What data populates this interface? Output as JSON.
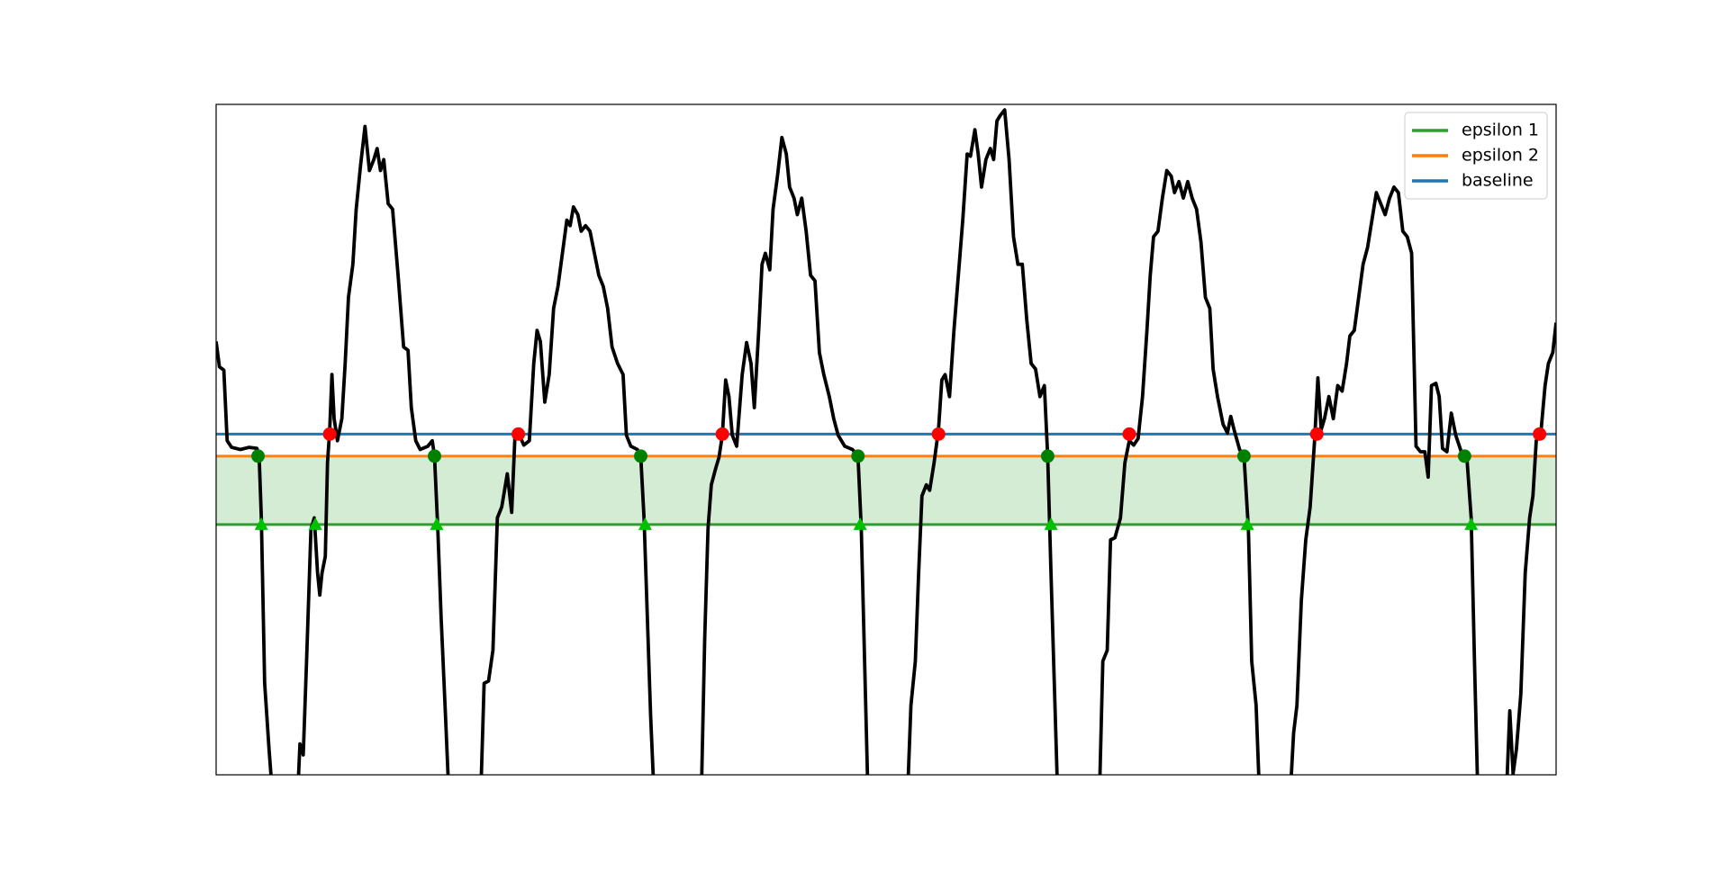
{
  "chart_data": {
    "type": "line",
    "xlim": [
      0,
      1215
    ],
    "ylim": [
      0,
      608
    ],
    "legend": "upper right",
    "band_color": "#d4ecd4",
    "series": [
      {
        "color": "#000000",
        "x": [
          0,
          3,
          7,
          10,
          14,
          22,
          30,
          37,
          39,
          41,
          44,
          48,
          51,
          74,
          76,
          79,
          82,
          86,
          89,
          92,
          94,
          96,
          99,
          101,
          103,
          105,
          107,
          110,
          114,
          117,
          120,
          124,
          127,
          131,
          135,
          139,
          143,
          146,
          149,
          152,
          156,
          160,
          165,
          170,
          174,
          177,
          181,
          185,
          192,
          196,
          198,
          201,
          204,
          208,
          211,
          240,
          243,
          247,
          251,
          255,
          259,
          264,
          268,
          271,
          275,
          279,
          284,
          288,
          291,
          294,
          298,
          302,
          306,
          310,
          314,
          318,
          321,
          324,
          328,
          331,
          335,
          339,
          343,
          347,
          351,
          355,
          359,
          364,
          369,
          372,
          376,
          382,
          385,
          388,
          391,
          394,
          397,
          440,
          443,
          446,
          449,
          453,
          456,
          459,
          462,
          465,
          468,
          472,
          477,
          481,
          485,
          488,
          492,
          495,
          498,
          502,
          505,
          509,
          513,
          517,
          520,
          524,
          527,
          531,
          535,
          539,
          543,
          547,
          551,
          556,
          560,
          564,
          570,
          577,
          582,
          585,
          588,
          591,
          627,
          630,
          634,
          637,
          640,
          644,
          647,
          651,
          655,
          658,
          661,
          665,
          669,
          673,
          677,
          681,
          684,
          688,
          691,
          694,
          698,
          702,
          705,
          708,
          711,
          715,
          719,
          723,
          727,
          731,
          735,
          739,
          743,
          747,
          751,
          754,
          757,
          760,
          763,
          801,
          804,
          808,
          811,
          815,
          820,
          824,
          828,
          832,
          836,
          840,
          844,
          847,
          850,
          854,
          858,
          862,
          866,
          869,
          873,
          877,
          881,
          885,
          889,
          893,
          897,
          901,
          904,
          908,
          913,
          917,
          920,
          923,
          928,
          932,
          936,
          939,
          943,
          946,
          974,
          977,
          980,
          984,
          988,
          992,
          996,
          999,
          1002,
          1005,
          1009,
          1013,
          1017,
          1021,
          1025,
          1028,
          1032,
          1036,
          1040,
          1044,
          1048,
          1052,
          1056,
          1060,
          1064,
          1068,
          1072,
          1076,
          1080,
          1084,
          1088,
          1092,
          1096,
          1099,
          1102,
          1106,
          1109,
          1112,
          1116,
          1120,
          1124,
          1129,
          1134,
          1138,
          1141,
          1144,
          1170,
          1173,
          1176,
          1179,
          1183,
          1187,
          1191,
          1194,
          1197,
          1201,
          1205,
          1208,
          1212,
          1215
        ],
        "values": [
          393,
          370,
          367,
          303,
          297,
          295,
          297,
          296,
          289,
          233,
          83,
          23,
          -17,
          -17,
          28,
          18,
          103,
          223,
          233,
          183,
          163,
          183,
          198,
          283,
          313,
          363,
          323,
          303,
          323,
          373,
          433,
          463,
          513,
          553,
          588,
          548,
          558,
          568,
          548,
          558,
          518,
          513,
          453,
          388,
          385,
          333,
          303,
          295,
          298,
          303,
          289,
          223,
          143,
          53,
          -17,
          -17,
          83,
          85,
          113,
          233,
          243,
          273,
          238,
          308,
          308,
          299,
          303,
          373,
          403,
          393,
          338,
          363,
          423,
          443,
          473,
          503,
          498,
          515,
          508,
          493,
          498,
          493,
          473,
          453,
          443,
          423,
          388,
          373,
          363,
          308,
          298,
          295,
          289,
          233,
          143,
          53,
          -17,
          -17,
          123,
          223,
          263,
          278,
          288,
          308,
          358,
          343,
          308,
          298,
          363,
          392,
          373,
          333,
          403,
          463,
          473,
          458,
          513,
          543,
          578,
          563,
          533,
          523,
          508,
          523,
          493,
          453,
          448,
          383,
          363,
          343,
          323,
          308,
          298,
          295,
          289,
          223,
          103,
          -17,
          -17,
          63,
          103,
          183,
          253,
          263,
          258,
          283,
          313,
          358,
          363,
          343,
          403,
          453,
          503,
          563,
          561,
          585,
          563,
          533,
          558,
          568,
          558,
          593,
          598,
          603,
          558,
          488,
          463,
          463,
          413,
          373,
          368,
          343,
          353,
          289,
          183,
          83,
          -17,
          -17,
          103,
          113,
          213,
          215,
          233,
          283,
          303,
          299,
          305,
          343,
          403,
          453,
          488,
          493,
          523,
          548,
          543,
          528,
          538,
          523,
          538,
          523,
          513,
          483,
          433,
          423,
          368,
          343,
          318,
          310,
          325,
          313,
          295,
          289,
          223,
          103,
          63,
          -17,
          -17,
          38,
          63,
          158,
          213,
          243,
          303,
          360,
          313,
          323,
          343,
          323,
          353,
          348,
          373,
          398,
          403,
          433,
          463,
          478,
          503,
          528,
          518,
          508,
          523,
          533,
          528,
          493,
          488,
          473,
          298,
          293,
          293,
          270,
          353,
          355,
          343,
          296,
          293,
          328,
          308,
          293,
          289,
          233,
          103,
          -17,
          -17,
          58,
          1,
          23,
          73,
          183,
          233,
          253,
          303,
          308,
          353,
          373,
          383,
          410
        ]
      }
    ],
    "hlines": [
      {
        "name": "epsilon 1",
        "color": "#2ca02c",
        "value": 227
      },
      {
        "name": "epsilon 2",
        "color": "#ff7f0e",
        "value": 289
      },
      {
        "name": "baseline",
        "color": "#1f77b4",
        "value": 309
      }
    ],
    "markers": [
      {
        "shape": "circle",
        "color": "#ff0000",
        "x": [
          103,
          274,
          459,
          655,
          828,
          998,
          1200
        ],
        "values": [
          309,
          309,
          309,
          309,
          309,
          309,
          309
        ]
      },
      {
        "shape": "circle",
        "color": "#008000",
        "x": [
          38,
          198,
          385,
          582,
          754,
          932,
          1132
        ],
        "values": [
          289,
          289,
          289,
          289,
          289,
          289,
          289
        ]
      },
      {
        "shape": "triangle",
        "color": "#00c000",
        "x": [
          41,
          90,
          200,
          389,
          584,
          757,
          935,
          1138
        ],
        "values": [
          227,
          227,
          227,
          227,
          227,
          227,
          227,
          227
        ]
      }
    ]
  }
}
